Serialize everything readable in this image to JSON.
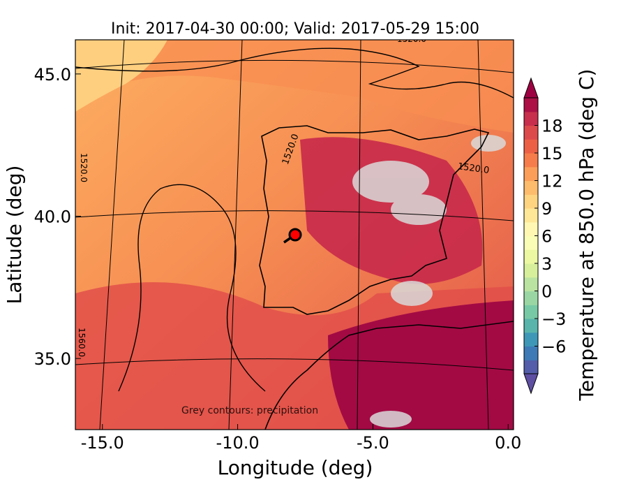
{
  "chart_data": {
    "type": "heatmap",
    "title": "Init: 2017-04-30 00:00; Valid: 2017-05-29 15:00",
    "xlabel": "Longitude (deg)",
    "ylabel": "Latitude (deg)",
    "xlim": [
      -16.0,
      0.2
    ],
    "ylim": [
      32.5,
      46.2
    ],
    "xticks": [
      -15.0,
      -10.0,
      -5.0,
      0.0
    ],
    "xtick_labels": [
      "-15.0",
      "-10.0",
      "-5.0",
      "0.0"
    ],
    "yticks": [
      35.0,
      40.0,
      45.0
    ],
    "ytick_labels": [
      "35.0",
      "40.0",
      "45.0"
    ],
    "colorbar": {
      "label": "Temperature at 850.0 hPa (deg C)",
      "min": -9,
      "max": 21,
      "step": 1.5,
      "ticks": [
        -6,
        -3,
        0,
        3,
        6,
        9,
        12,
        15,
        18
      ],
      "tick_labels": [
        "−6",
        "−3",
        "0",
        "3",
        "6",
        "9",
        "12",
        "15",
        "18"
      ],
      "extend": "both",
      "colormap": "Spectral_r",
      "colors": [
        "#5e4fa2",
        "#3288bd",
        "#66c2a5",
        "#abdda4",
        "#e6f598",
        "#ffffbf",
        "#fee08b",
        "#fdae61",
        "#f46d43",
        "#d53e4f",
        "#9e0142"
      ]
    },
    "contour_labels": [
      "1520.0",
      "1520.0",
      "1520.0",
      "1520.0",
      "1560.0"
    ],
    "annotation": "Grey contours: precipitation",
    "marker": {
      "lon": -7.6,
      "lat": 39.3,
      "color": "#ff0000"
    }
  }
}
